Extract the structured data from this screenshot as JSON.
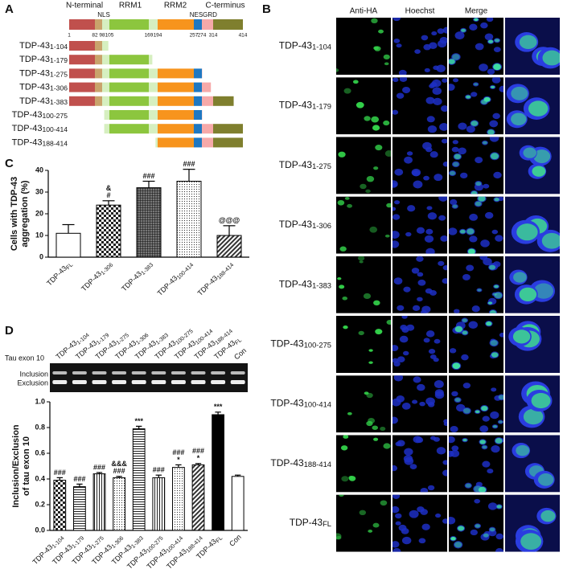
{
  "panel_a": {
    "label": "A",
    "domain_labels": [
      "N-terminal",
      "RRM1",
      "RRM2",
      "C-terminus"
    ],
    "motif_labels": [
      "NLS",
      "NES",
      "GRD"
    ],
    "positions": [
      1,
      82,
      98,
      105,
      169,
      194,
      257,
      274,
      314,
      414
    ],
    "segment_colors": [
      "#c0504d",
      "#c9a36b",
      "#d6efc0",
      "#8cc63e",
      "#d6efc0",
      "#f7941d",
      "#1f78c1",
      "#f6a9a9",
      "#7f7f2e"
    ],
    "constructs": [
      "TDP-431-104",
      "TDP-431-179",
      "TDP-431-275",
      "TDP-431-306",
      "TDP-431-383",
      "TDP-43100-275",
      "TDP-43100-414",
      "TDP-43188-414"
    ]
  },
  "panel_b": {
    "label": "B",
    "columns": [
      "Anti-HA",
      "Hoechst",
      "Merge"
    ],
    "rows": [
      "TDP-431-104",
      "TDP-431-179",
      "TDP-431-275",
      "TDP-431-306",
      "TDP-431-383",
      "TDP-43100-275",
      "TDP-43100-414",
      "TDP-43188-414",
      "TDP-43FL"
    ]
  },
  "gel": {
    "title": "Tau exon 10",
    "bands": [
      "Inclusion",
      "Exclusion"
    ]
  },
  "chart_data": [
    {
      "type": "bar",
      "label": "C",
      "ylabel": [
        "Cells with TDP-43",
        "aggregation (%)"
      ],
      "categories": [
        "TDP-43FL",
        "TDP-431-306",
        "TDP-431-383",
        "TDP-43100-414",
        "TDP-43188-414"
      ],
      "values": [
        11,
        24,
        32,
        35,
        10
      ],
      "errors": [
        4,
        2,
        3,
        5.5,
        4.5
      ],
      "annotations": [
        null,
        [
          "&",
          "#"
        ],
        [
          "###"
        ],
        [
          "###"
        ],
        [
          "@@@"
        ]
      ],
      "fills": [
        "white",
        "checker",
        "grid",
        "dots",
        "diag"
      ],
      "ylim": [
        0,
        40
      ],
      "yticks": [
        0,
        10,
        20,
        30,
        40
      ]
    },
    {
      "type": "bar",
      "label": "D",
      "ylabel": [
        "Inclusion/Exclusion",
        "of tau exon 10"
      ],
      "categories": [
        "TDP-431-104",
        "TDP-431-179",
        "TDP-431-275",
        "TDP-431-306",
        "TDP-431-383",
        "TDP-43100-275",
        "TDP-43100-414",
        "TDP-43188-414",
        "TDP-43FL",
        "Con"
      ],
      "values": [
        0.39,
        0.34,
        0.44,
        0.41,
        0.79,
        0.41,
        0.49,
        0.51,
        0.9,
        0.42
      ],
      "errors": [
        0.02,
        0.02,
        0.01,
        0.01,
        0.02,
        0.02,
        0.02,
        0.01,
        0.02,
        0.01
      ],
      "annotations": [
        [
          "###"
        ],
        [
          "###"
        ],
        [
          "###"
        ],
        [
          "&&&",
          "###"
        ],
        [
          "***"
        ],
        [
          "###"
        ],
        [
          "###",
          "*"
        ],
        [
          "###",
          "*"
        ],
        [
          "***"
        ],
        null
      ],
      "fills": [
        "checker",
        "hlines",
        "vlines",
        "dots",
        "hlines",
        "vlines",
        "dots",
        "diag",
        "black",
        "white"
      ],
      "ylim": [
        0,
        1
      ],
      "yticks": [
        {
          "value": 0,
          "label": "0.0"
        },
        0.2,
        0.4,
        0.6,
        0.8,
        {
          "value": 1,
          "label": "1.0"
        }
      ]
    }
  ]
}
